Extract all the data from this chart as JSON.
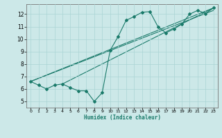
{
  "xlabel": "Humidex (Indice chaleur)",
  "bg_color": "#cce8e8",
  "line_color": "#1a7a6a",
  "grid_color": "#aad4d4",
  "xlim": [
    -0.5,
    23.5
  ],
  "ylim": [
    4.5,
    12.8
  ],
  "xticks": [
    0,
    1,
    2,
    3,
    4,
    5,
    6,
    7,
    8,
    9,
    10,
    11,
    12,
    13,
    14,
    15,
    16,
    17,
    18,
    19,
    20,
    21,
    22,
    23
  ],
  "yticks": [
    5,
    6,
    7,
    8,
    9,
    10,
    11,
    12
  ],
  "scatter_x": [
    0,
    1,
    2,
    3,
    4,
    5,
    6,
    7,
    8,
    9,
    10,
    11,
    12,
    13,
    14,
    15,
    16,
    17,
    18,
    19,
    20,
    21,
    22,
    23
  ],
  "scatter_y": [
    6.6,
    6.3,
    6.0,
    6.3,
    6.4,
    6.1,
    5.85,
    5.85,
    5.0,
    5.7,
    9.1,
    10.2,
    11.5,
    11.8,
    12.15,
    12.2,
    11.0,
    10.5,
    10.8,
    11.2,
    12.0,
    12.3,
    12.05,
    12.5
  ],
  "line1_x": [
    0,
    23
  ],
  "line1_y": [
    6.6,
    12.5
  ],
  "line2_x": [
    0,
    23
  ],
  "line2_y": [
    6.6,
    12.3
  ],
  "line3_x": [
    4,
    23
  ],
  "line3_y": [
    6.4,
    12.5
  ]
}
